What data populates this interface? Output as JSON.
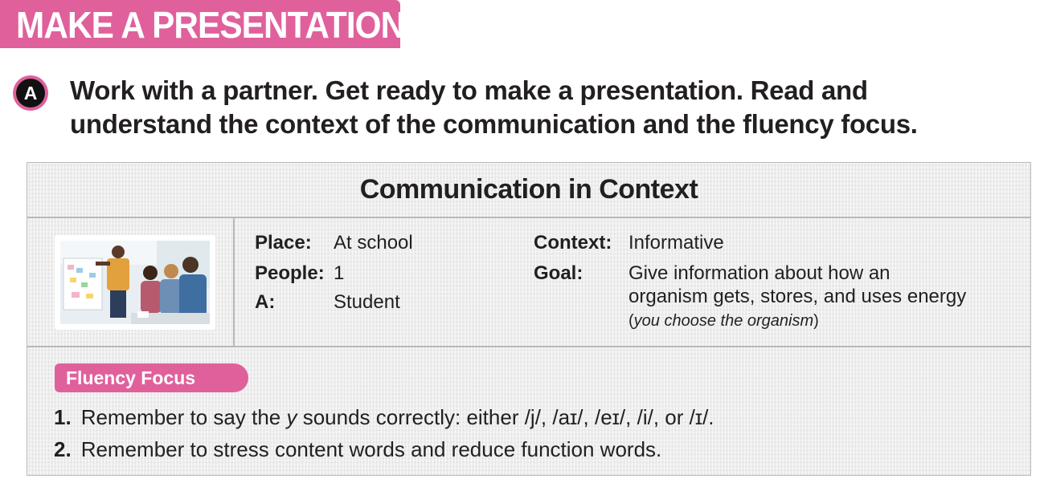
{
  "banner": {
    "title": "MAKE A PRESENTATION"
  },
  "activity": {
    "marker": "A",
    "line1": "Work with a partner. Get ready to make a presentation. Read and",
    "line2": "understand the context of the communication and the fluency focus."
  },
  "context_box": {
    "title": "Communication in Context",
    "photo_icon": "classroom-presentation-photo",
    "place_label": "Place:",
    "place_value": "At school",
    "people_label": "People:",
    "people_value": "1",
    "a_label": "A:",
    "a_value": "Student",
    "context_label": "Context:",
    "context_value": "Informative",
    "goal_label": "Goal:",
    "goal_line1": "Give information about how an",
    "goal_line2": "organism gets, stores, and uses energy",
    "goal_note_open": "(",
    "goal_note_italic": "you choose the organism",
    "goal_note_close": ")"
  },
  "fluency": {
    "label": "Fluency Focus",
    "item1_num": "1.",
    "item1_pre": "Remember to say the ",
    "item1_y": "y",
    "item1_post": " sounds correctly: either /j/, /aɪ/, /eɪ/, /i/, or /ɪ/.",
    "item2_num": "2.",
    "item2_text": "Remember to stress content words and reduce function words."
  },
  "colors": {
    "accent": "#e0609c",
    "box_bg": "#ececec",
    "text": "#231f20"
  }
}
